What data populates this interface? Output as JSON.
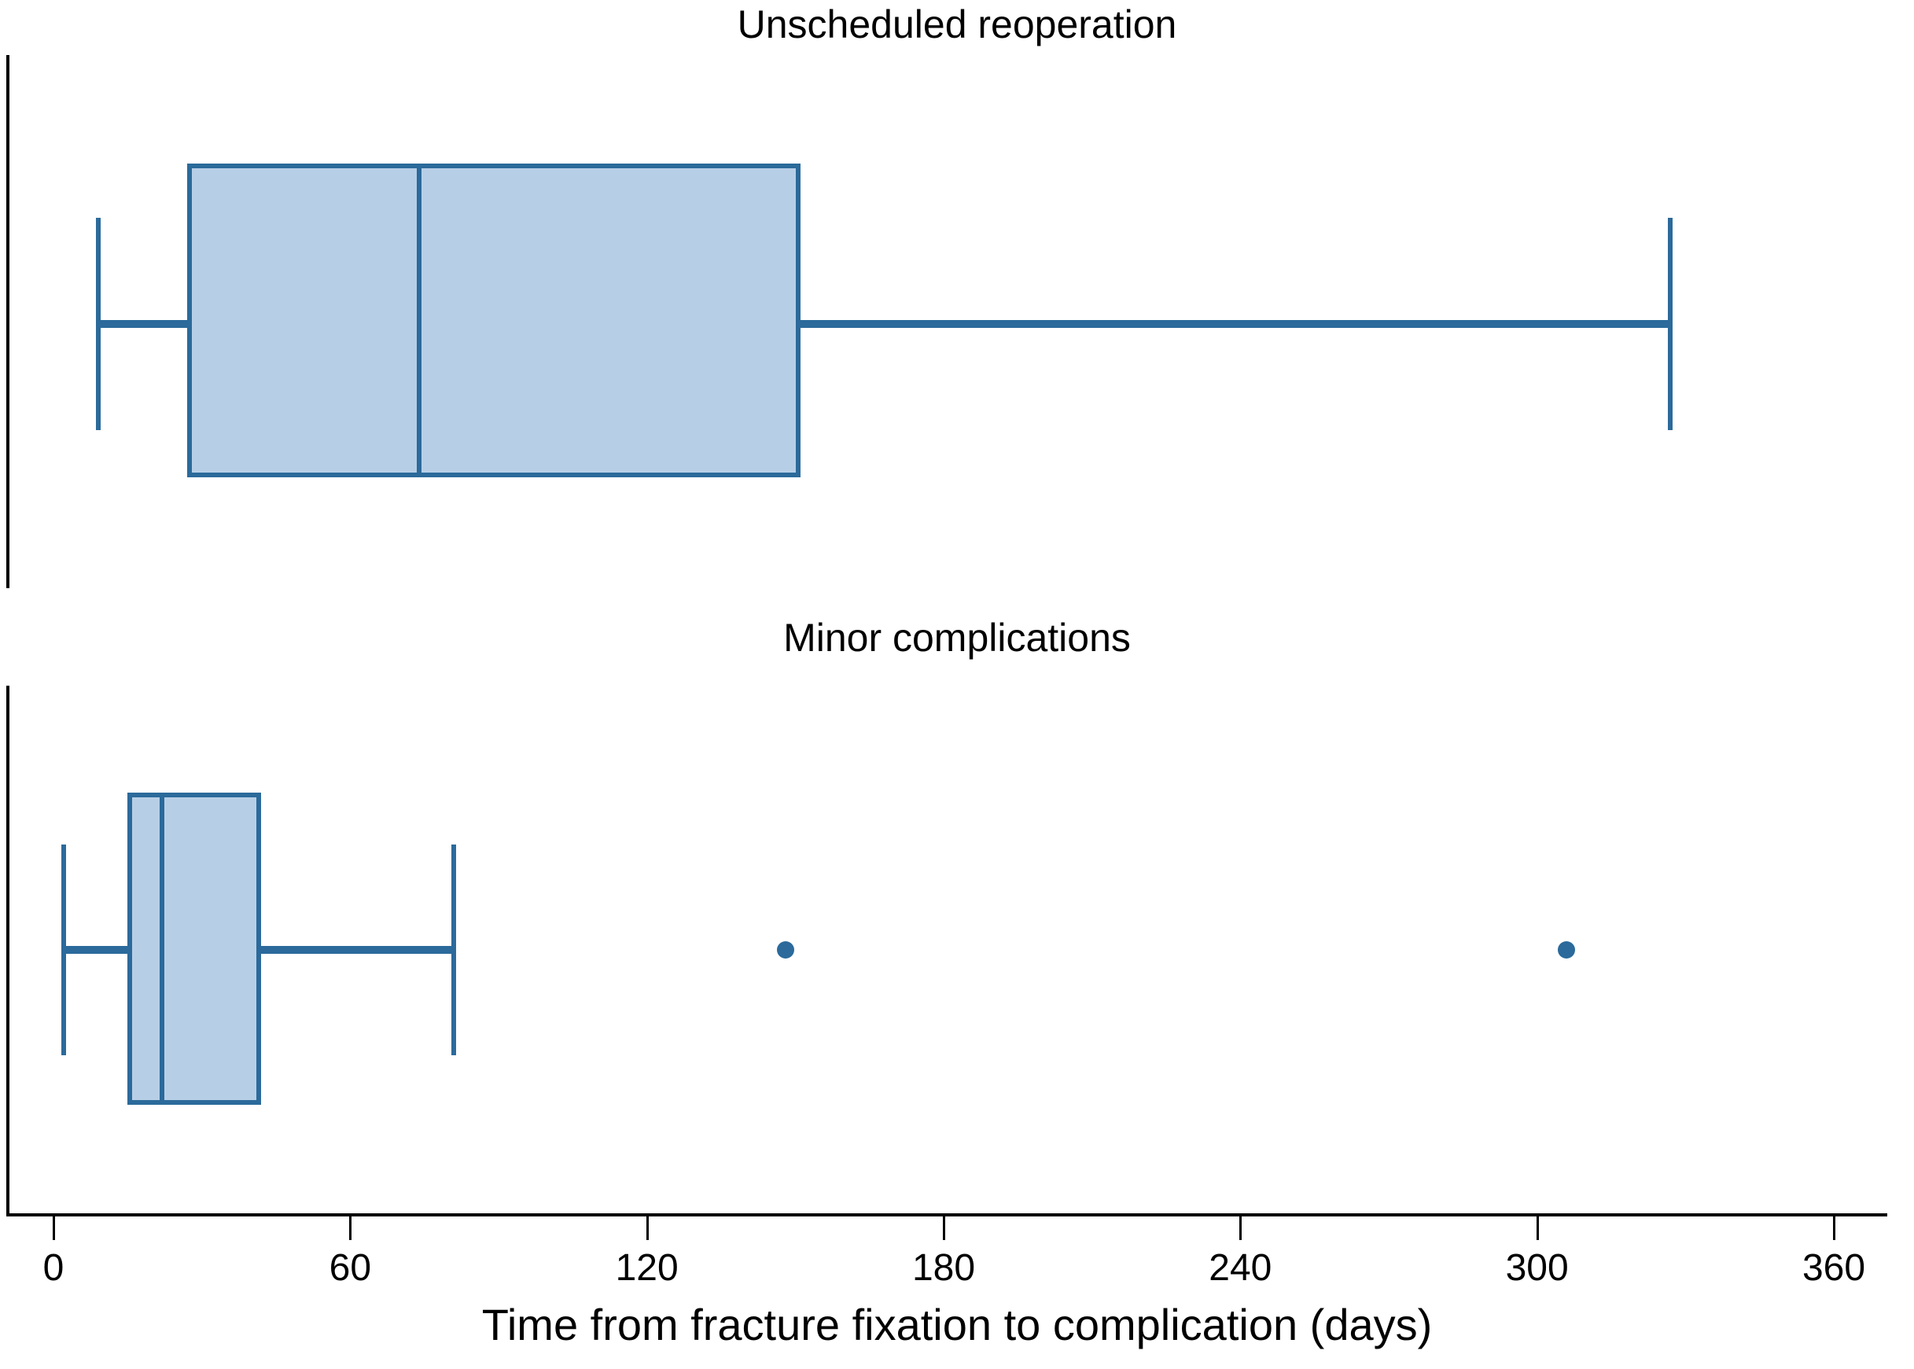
{
  "chart_data": {
    "type": "boxplot",
    "orientation": "horizontal",
    "grid": false,
    "legend": "none",
    "xlabel": "Time from fracture fixation to complication (days)",
    "x_ticks": [
      0,
      60,
      120,
      180,
      240,
      300,
      360
    ],
    "xlim": [
      0,
      376
    ],
    "colors": {
      "box_fill": "#b7cfe6",
      "box_stroke": "#2b6a9b",
      "axis": "#000000"
    },
    "panels": [
      {
        "title": "Unscheduled reoperation",
        "whisker_low": 9,
        "q1": 27,
        "median": 74,
        "q3": 151,
        "whisker_high": 327,
        "outliers": []
      },
      {
        "title": "Minor complications",
        "whisker_low": 2,
        "q1": 15,
        "median": 22,
        "q3": 42,
        "whisker_high": 81,
        "outliers": [
          148,
          306
        ]
      }
    ]
  }
}
